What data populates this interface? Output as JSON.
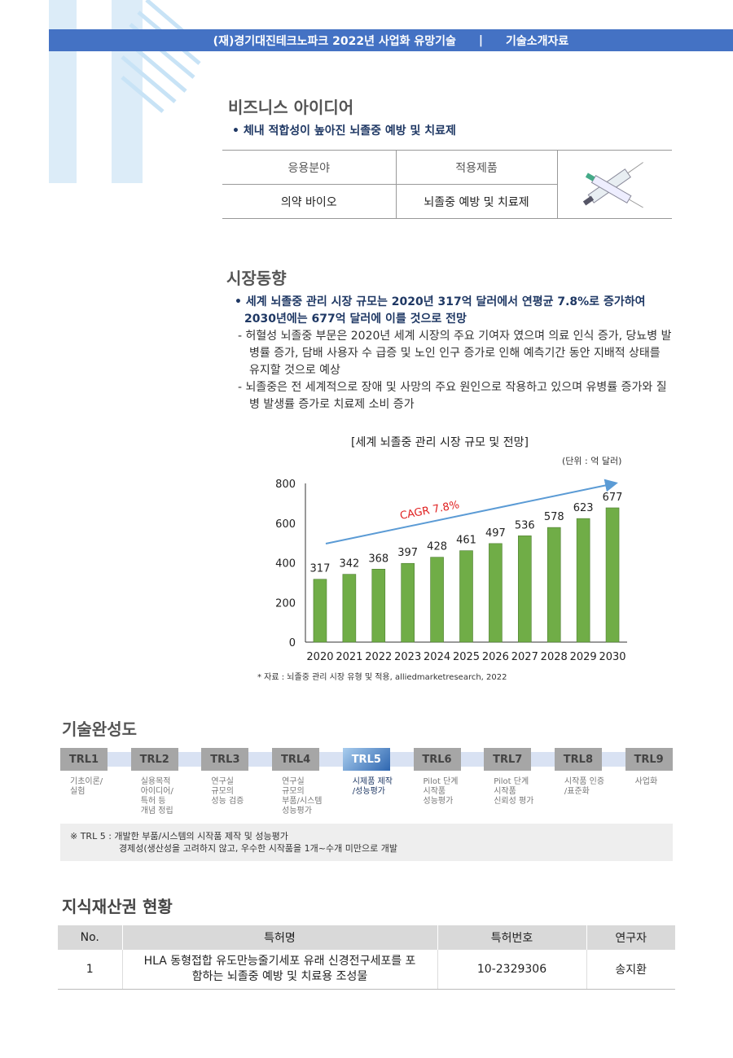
{
  "header": {
    "org": "(재)경기대진테크노파크 2022년 사업화 유망기술",
    "separator": "|",
    "doc": "기술소개자료"
  },
  "business": {
    "title": "비즈니스 아이디어",
    "bullet": "• 체내 적합성이 높아진 뇌졸중 예방 및 치료제",
    "table": {
      "headers": [
        "응용분야",
        "적용제품"
      ],
      "values": [
        "의약 바이오",
        "뇌졸중 예방 및 치료제"
      ],
      "image": "syringe-image"
    }
  },
  "market": {
    "title": "시장동향",
    "bullet": "• 세계 뇌졸중 관리 시장 규모는 2020년 317억 달러에서 연평균 7.8%로 증가하여 2030년에는 677억 달러에 이를 것으로 전망",
    "subs": [
      "- 허혈성 뇌졸중 부문은 2020년 세계 시장의 주요 기여자 였으며 의료 인식 증가, 당뇨병 발병률 증가, 담배 사용자 수 급증 및 노인 인구 증가로 인해 예측기간 동안 지배적 상태를 유지할 것으로 예상",
      "- 뇌졸중은 전 세계적으로 장애 및 사망의 주요 원인으로 작용하고 있으며 유병률 증가와 질병 발생률 증가로 치료제 소비 증가"
    ]
  },
  "chart_data": {
    "type": "bar",
    "title": "[세계 뇌졸중 관리 시장 규모 및 전망]",
    "unit": "(단위 : 억 달러)",
    "categories": [
      "2020",
      "2021",
      "2022",
      "2023",
      "2024",
      "2025",
      "2026",
      "2027",
      "2028",
      "2029",
      "2030"
    ],
    "values": [
      317,
      342,
      368,
      397,
      428,
      461,
      497,
      536,
      578,
      623,
      677
    ],
    "ylim": [
      0,
      800
    ],
    "yticks": [
      0,
      200,
      400,
      600,
      800
    ],
    "annotation": "CAGR 7.8%",
    "bar_color": "#70ad47",
    "arrow_color": "#5b9bd5",
    "grid": false,
    "source": "* 자료 : 뇌졸중 관리 시장 유형 및 적용, alliedmarketresearch, 2022"
  },
  "trl": {
    "title": "기술완성도",
    "current": "TRL5",
    "levels": [
      {
        "label": "TRL1",
        "desc": "기초이론/\n실험"
      },
      {
        "label": "TRL2",
        "desc": "실용목적\n아이디어/\n특허 등\n개념 정립"
      },
      {
        "label": "TRL3",
        "desc": "연구실\n규모의\n성능 검증"
      },
      {
        "label": "TRL4",
        "desc": "연구실\n규모의\n부품/시스템\n성능평가"
      },
      {
        "label": "TRL5",
        "desc": "시제품 제작\n/성능평가"
      },
      {
        "label": "TRL6",
        "desc": "Pilot 단계\n시작품\n성능평가"
      },
      {
        "label": "TRL7",
        "desc": "Pilot 단계\n시작품\n신뢰성 평가"
      },
      {
        "label": "TRL8",
        "desc": "시작품 인증\n/표준화"
      },
      {
        "label": "TRL9",
        "desc": "사업화"
      }
    ],
    "note1": "※ TRL 5  : 개발한 부품/시스템의 시작품 제작 및 성능평가",
    "note2": "경제성(생산성을 고려하지 않고, 우수한 시작품을 1개~수개 미만으로 개발"
  },
  "ip": {
    "title": "지식재산권 현황",
    "headers": [
      "No.",
      "특허명",
      "특허번호",
      "연구자"
    ],
    "rows": [
      [
        "1",
        "HLA 동형접합 유도만능줄기세포 유래 신경전구세포를 포함하는 뇌졸중 예방 및 치료용 조성물",
        "10-2329306",
        "송지환"
      ]
    ]
  }
}
